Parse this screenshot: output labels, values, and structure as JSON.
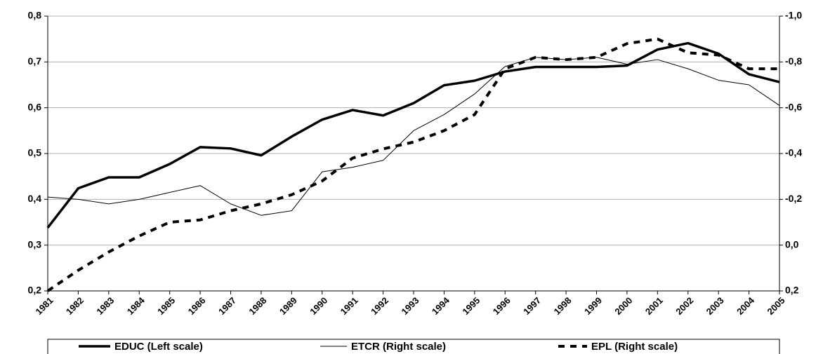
{
  "chart_data": {
    "type": "line",
    "categories": [
      "1981",
      "1982",
      "1983",
      "1984",
      "1985",
      "1986",
      "1987",
      "1988",
      "1989",
      "1990",
      "1991",
      "1992",
      "1993",
      "1994",
      "1995",
      "1996",
      "1997",
      "1998",
      "1999",
      "2000",
      "2001",
      "2002",
      "2003",
      "2004",
      "2005"
    ],
    "series": [
      {
        "name": "EDUC (Left scale)",
        "color": "#000000",
        "style": "thick",
        "axis": "y",
        "values": [
          0.338,
          0.424,
          0.448,
          0.448,
          0.477,
          0.514,
          0.511,
          0.496,
          0.537,
          0.574,
          0.595,
          0.583,
          0.61,
          0.649,
          0.659,
          0.679,
          0.689,
          0.689,
          0.689,
          0.692,
          0.727,
          0.741,
          0.718,
          0.673,
          0.656
        ]
      },
      {
        "name": "ETCR (Right scale)",
        "color": "#000000",
        "style": "thin",
        "axis": "y2",
        "values": [
          -0.21,
          -0.2,
          -0.18,
          -0.2,
          -0.23,
          -0.26,
          -0.18,
          -0.13,
          -0.15,
          -0.32,
          -0.34,
          -0.37,
          -0.5,
          -0.57,
          -0.66,
          -0.78,
          -0.82,
          -0.81,
          -0.82,
          -0.79,
          -0.81,
          -0.77,
          -0.72,
          -0.7,
          -0.61
        ]
      },
      {
        "name": "EPL (Right scale)",
        "color": "#000000",
        "style": "dashed",
        "axis": "y2",
        "values": [
          0.2,
          0.11,
          0.03,
          -0.04,
          -0.1,
          -0.11,
          -0.15,
          -0.18,
          -0.22,
          -0.28,
          -0.38,
          -0.42,
          -0.45,
          -0.5,
          -0.57,
          -0.77,
          -0.82,
          -0.81,
          -0.82,
          -0.88,
          -0.9,
          -0.84,
          -0.83,
          -0.77,
          -0.77
        ]
      }
    ],
    "ylim": [
      0.2,
      0.8
    ],
    "yticks": [
      {
        "value": 0.2,
        "label": "0,2"
      },
      {
        "value": 0.3,
        "label": "0,3"
      },
      {
        "value": 0.4,
        "label": "0,4"
      },
      {
        "value": 0.5,
        "label": "0,5"
      },
      {
        "value": 0.6,
        "label": "0,6"
      },
      {
        "value": 0.7,
        "label": "0,7"
      },
      {
        "value": 0.8,
        "label": "0,8"
      }
    ],
    "y2lim": [
      0.2,
      -1.0
    ],
    "y2ticks": [
      {
        "value": 0.2,
        "label": "0,2"
      },
      {
        "value": 0.0,
        "label": "0,0"
      },
      {
        "value": -0.2,
        "label": "-0,2"
      },
      {
        "value": -0.4,
        "label": "-0,4"
      },
      {
        "value": -0.6,
        "label": "-0,6"
      },
      {
        "value": -0.8,
        "label": "-0,8"
      },
      {
        "value": -1.0,
        "label": "-1,0"
      }
    ],
    "grid": true,
    "legend": "bottom"
  }
}
